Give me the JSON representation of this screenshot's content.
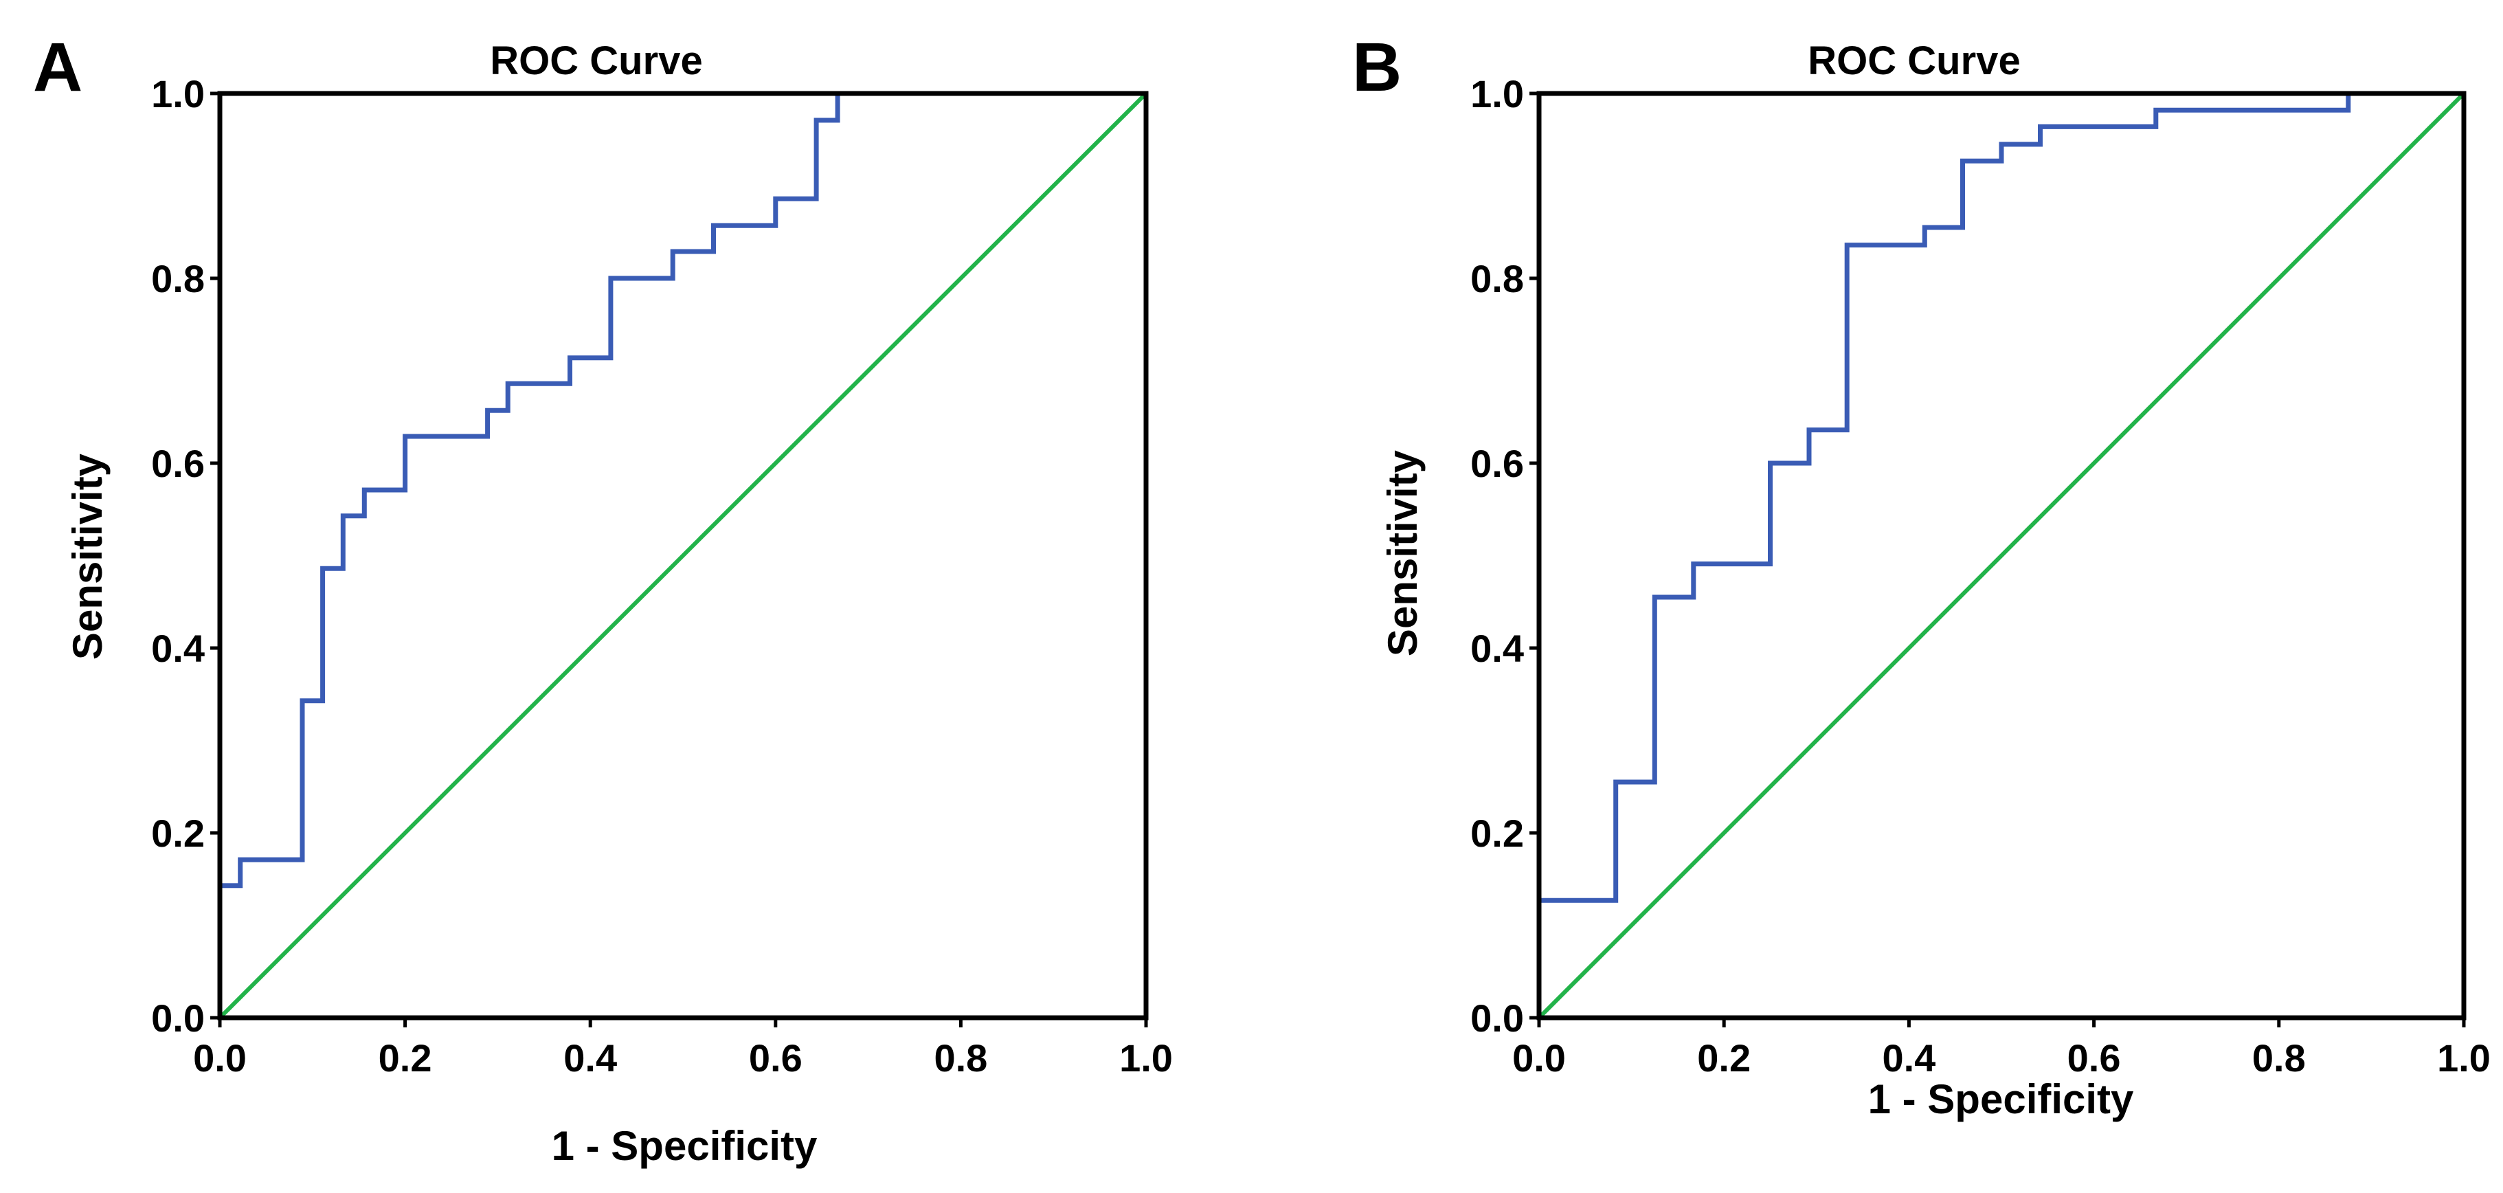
{
  "chart_data": [
    {
      "type": "line",
      "panel_label": "A",
      "title": "ROC Curve",
      "xlabel": "1 - Specificity",
      "ylabel": "Sensitivity",
      "xlim": [
        0.0,
        1.0
      ],
      "ylim": [
        0.0,
        1.0
      ],
      "x_ticks": [
        "0.0",
        "0.2",
        "0.4",
        "0.6",
        "0.8",
        "1.0"
      ],
      "y_ticks": [
        "0.0",
        "0.2",
        "0.4",
        "0.6",
        "0.8",
        "1.0"
      ],
      "grid": false,
      "series": [
        {
          "name": "ROC",
          "color": "#3a5cb5",
          "x": [
            0.0,
            0.0,
            0.022,
            0.022,
            0.089,
            0.089,
            0.111,
            0.111,
            0.133,
            0.133,
            0.156,
            0.156,
            0.2,
            0.2,
            0.289,
            0.289,
            0.311,
            0.311,
            0.378,
            0.378,
            0.422,
            0.422,
            0.489,
            0.489,
            0.533,
            0.533,
            0.6,
            0.6,
            0.644,
            0.644,
            0.667,
            0.667
          ],
          "y": [
            0.0,
            0.143,
            0.143,
            0.171,
            0.171,
            0.343,
            0.343,
            0.486,
            0.486,
            0.543,
            0.543,
            0.571,
            0.571,
            0.629,
            0.629,
            0.657,
            0.657,
            0.686,
            0.686,
            0.714,
            0.714,
            0.8,
            0.8,
            0.829,
            0.829,
            0.857,
            0.857,
            0.886,
            0.886,
            0.971,
            0.971,
            1.0
          ]
        },
        {
          "name": "Reference Line",
          "color": "#22b34a",
          "x": [
            0.0,
            1.0
          ],
          "y": [
            0.0,
            1.0
          ]
        }
      ]
    },
    {
      "type": "line",
      "panel_label": "B",
      "title": "ROC Curve",
      "xlabel": "1 - Specificity",
      "ylabel": "Sensitivity",
      "xlim": [
        0.0,
        1.0
      ],
      "ylim": [
        0.0,
        1.0
      ],
      "x_ticks": [
        "0.0",
        "0.2",
        "0.4",
        "0.6",
        "0.8",
        "1.0"
      ],
      "y_ticks": [
        "0.0",
        "0.2",
        "0.4",
        "0.6",
        "0.8",
        "1.0"
      ],
      "grid": false,
      "series": [
        {
          "name": "ROC",
          "color": "#3a5cb5",
          "x": [
            0.0,
            0.0,
            0.083,
            0.083,
            0.125,
            0.125,
            0.167,
            0.167,
            0.25,
            0.25,
            0.292,
            0.292,
            0.333,
            0.333,
            0.417,
            0.417,
            0.458,
            0.458,
            0.5,
            0.5,
            0.542,
            0.542,
            0.667,
            0.667,
            0.875,
            0.875
          ],
          "y": [
            0.0,
            0.127,
            0.127,
            0.255,
            0.255,
            0.455,
            0.455,
            0.491,
            0.491,
            0.6,
            0.6,
            0.636,
            0.636,
            0.836,
            0.836,
            0.855,
            0.855,
            0.927,
            0.927,
            0.945,
            0.945,
            0.964,
            0.964,
            0.982,
            0.982,
            1.0
          ]
        },
        {
          "name": "Reference Line",
          "color": "#22b34a",
          "x": [
            0.0,
            1.0
          ],
          "y": [
            0.0,
            1.0
          ]
        }
      ]
    }
  ]
}
